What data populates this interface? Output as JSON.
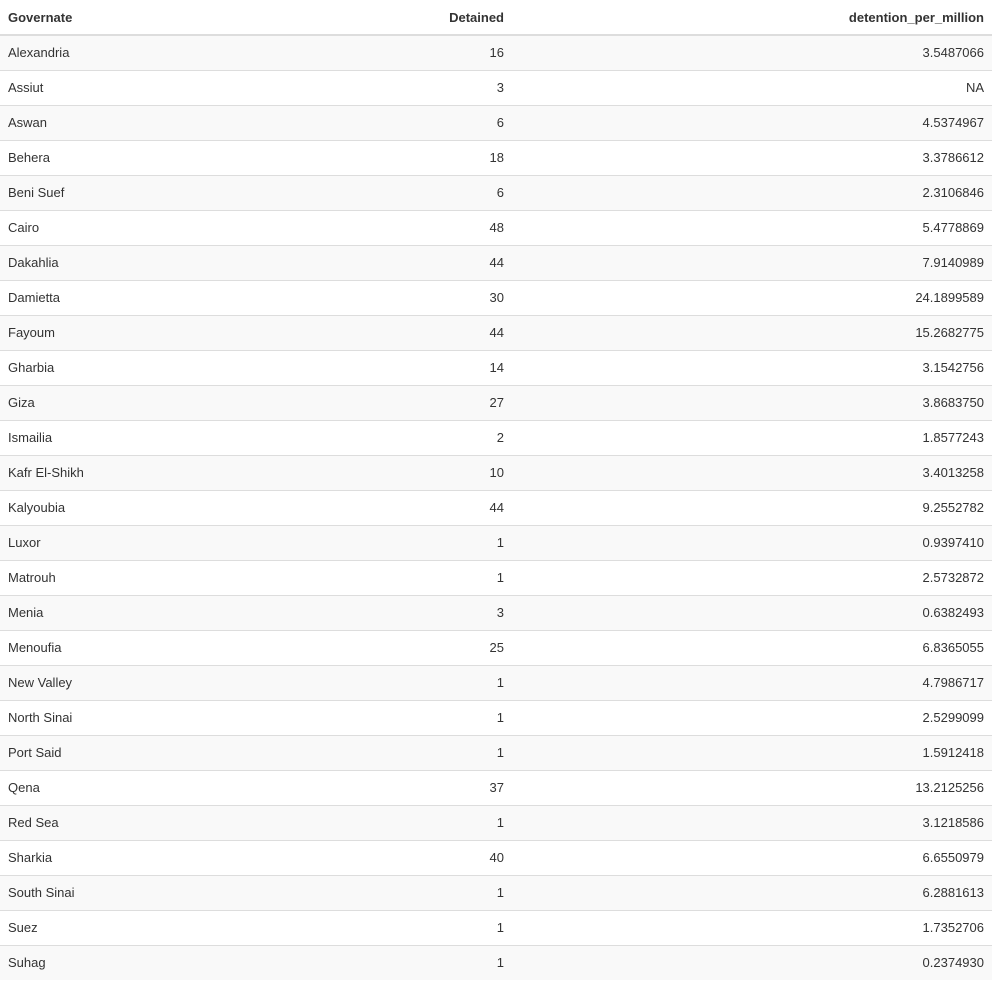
{
  "table": {
    "columns": [
      "Governate",
      "Detained",
      "detention_per_million"
    ],
    "rows": [
      [
        "Alexandria",
        "16",
        "3.5487066"
      ],
      [
        "Assiut",
        "3",
        "NA"
      ],
      [
        "Aswan",
        "6",
        "4.5374967"
      ],
      [
        "Behera",
        "18",
        "3.3786612"
      ],
      [
        "Beni Suef",
        "6",
        "2.3106846"
      ],
      [
        "Cairo",
        "48",
        "5.4778869"
      ],
      [
        "Dakahlia",
        "44",
        "7.9140989"
      ],
      [
        "Damietta",
        "30",
        "24.1899589"
      ],
      [
        "Fayoum",
        "44",
        "15.2682775"
      ],
      [
        "Gharbia",
        "14",
        "3.1542756"
      ],
      [
        "Giza",
        "27",
        "3.8683750"
      ],
      [
        "Ismailia",
        "2",
        "1.8577243"
      ],
      [
        "Kafr El-Shikh",
        "10",
        "3.4013258"
      ],
      [
        "Kalyoubia",
        "44",
        "9.2552782"
      ],
      [
        "Luxor",
        "1",
        "0.9397410"
      ],
      [
        "Matrouh",
        "1",
        "2.5732872"
      ],
      [
        "Menia",
        "3",
        "0.6382493"
      ],
      [
        "Menoufia",
        "25",
        "6.8365055"
      ],
      [
        "New Valley",
        "1",
        "4.7986717"
      ],
      [
        "North Sinai",
        "1",
        "2.5299099"
      ],
      [
        "Port Said",
        "1",
        "1.5912418"
      ],
      [
        "Qena",
        "37",
        "13.2125256"
      ],
      [
        "Red Sea",
        "1",
        "3.1218586"
      ],
      [
        "Sharkia",
        "40",
        "6.6550979"
      ],
      [
        "South Sinai",
        "1",
        "6.2881613"
      ],
      [
        "Suez",
        "1",
        "1.7352706"
      ],
      [
        "Suhag",
        "1",
        "0.2374930"
      ]
    ]
  }
}
